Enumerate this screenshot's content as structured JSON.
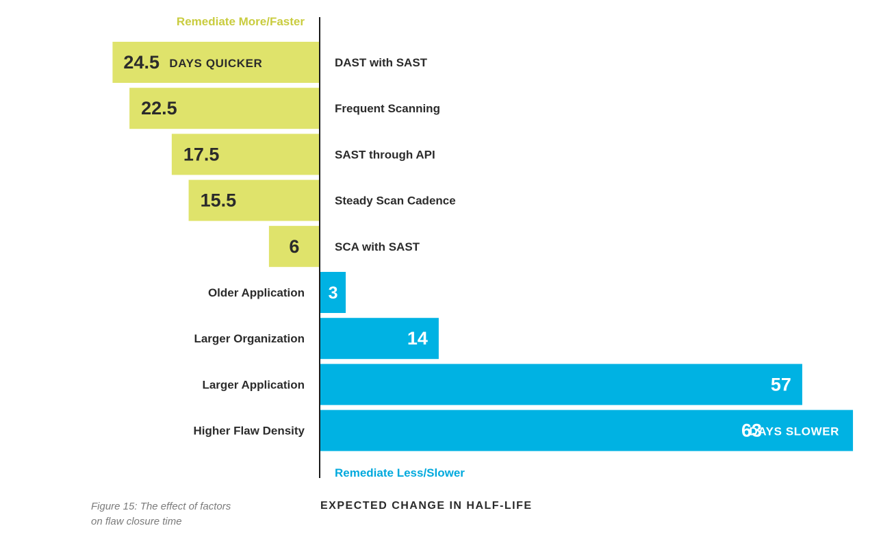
{
  "chart_data": {
    "type": "bar",
    "orientation": "horizontal-diverging",
    "categories": [
      "DAST with SAST",
      "Frequent Scanning",
      "SAST through API",
      "Steady Scan Cadence",
      "SCA with SAST",
      "Older Application",
      "Larger Organization",
      "Larger Application",
      "Higher Flaw Density"
    ],
    "values": [
      -24.5,
      -22.5,
      -17.5,
      -15.5,
      -6,
      3,
      14,
      57,
      63
    ],
    "value_labels": [
      "24.5",
      "22.5",
      "17.5",
      "15.5",
      "6",
      "3",
      "14",
      "57",
      "63"
    ],
    "unit_labels": {
      "first_negative": "DAYS QUICKER",
      "last_positive": "DAYS SLOWER"
    },
    "direction_labels": {
      "negative": "Remediate More/Faster",
      "positive": "Remediate Less/Slower"
    },
    "xlabel": "EXPECTED CHANGE IN HALF-LIFE",
    "colors": {
      "negative": "#dfe36b",
      "positive": "#00b2e3",
      "negative_text": "#c9cc3f",
      "positive_text": "#00a9dd",
      "label_dark": "#2b2b2b",
      "label_light": "#ffffff"
    },
    "grid": false
  },
  "caption": {
    "line1": "Figure 15: The effect of factors",
    "line2": "on flaw closure time"
  }
}
